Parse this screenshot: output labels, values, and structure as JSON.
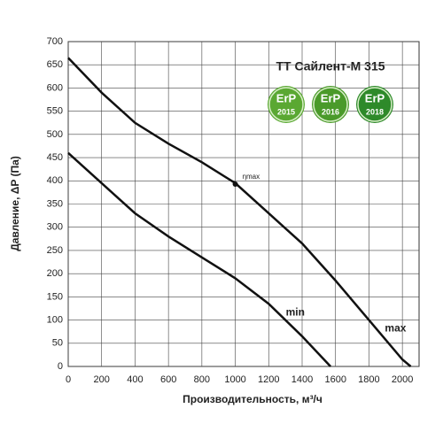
{
  "chart_data": {
    "type": "line",
    "title": "ТТ Сайлент-М 315",
    "x_label": "Производительность, м³/ч",
    "y_label": "Давление, ΔP (Па)",
    "xlim": [
      0,
      2100
    ],
    "ylim": [
      0,
      700
    ],
    "xticks": [
      0,
      200,
      400,
      600,
      800,
      1000,
      1200,
      1400,
      1600,
      1800,
      2000
    ],
    "yticks": [
      0,
      50,
      100,
      150,
      200,
      250,
      300,
      350,
      400,
      450,
      500,
      550,
      600,
      650,
      700
    ],
    "grid": true,
    "series": [
      {
        "name": "max",
        "color": "#111111",
        "x": [
          0,
          200,
          400,
          600,
          800,
          1000,
          1200,
          1400,
          1600,
          1800,
          2000,
          2050
        ],
        "values": [
          665,
          590,
          525,
          480,
          440,
          395,
          330,
          265,
          185,
          100,
          15,
          0
        ]
      },
      {
        "name": "min",
        "color": "#111111",
        "x": [
          0,
          200,
          400,
          600,
          800,
          1000,
          1200,
          1400,
          1570
        ],
        "values": [
          460,
          395,
          330,
          280,
          235,
          190,
          135,
          65,
          0
        ]
      }
    ],
    "points": [
      {
        "label": "ηmax",
        "x": 1000,
        "y": 393
      }
    ],
    "badges": [
      {
        "label": "ErP",
        "year": "2015"
      },
      {
        "label": "ErP",
        "year": "2016"
      },
      {
        "label": "ErP",
        "year": "2018"
      }
    ]
  }
}
